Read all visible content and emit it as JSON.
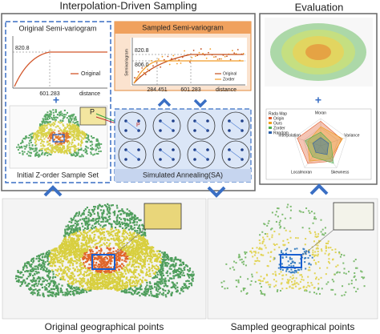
{
  "header": {
    "title": "Interpolation-Driven Sampling",
    "evaluation": "Evaluation"
  },
  "original_variogram": {
    "title": "Original Semi-variogram",
    "sill": "820.8",
    "range": "601.283",
    "x_label": "distance",
    "legend": "Original"
  },
  "sampled_variogram": {
    "title": "Sampled Semi-variogram",
    "y_label": "Semivariogram",
    "sill_original": "820.8",
    "sill_sampled": "806.0",
    "range_sampled": "284.451",
    "range_original": "601.283",
    "x_label": "distance",
    "legend": [
      "Original",
      "Zorder"
    ]
  },
  "initial_set": {
    "label": "Initial Z-order Sample Set",
    "point_labels": [
      "P",
      "P"
    ]
  },
  "annealing": {
    "label": "Simulated Annealing(SA)"
  },
  "radar": {
    "title": "Rada Map",
    "legend": [
      "Origin",
      "Ours",
      "Zorder",
      "Random"
    ],
    "axes": [
      "Moran",
      "Variance",
      "Skewness",
      "Localmoran",
      "Interpolation"
    ]
  },
  "captions": [
    "Original geographical points",
    "Sampled geographical points"
  ]
}
